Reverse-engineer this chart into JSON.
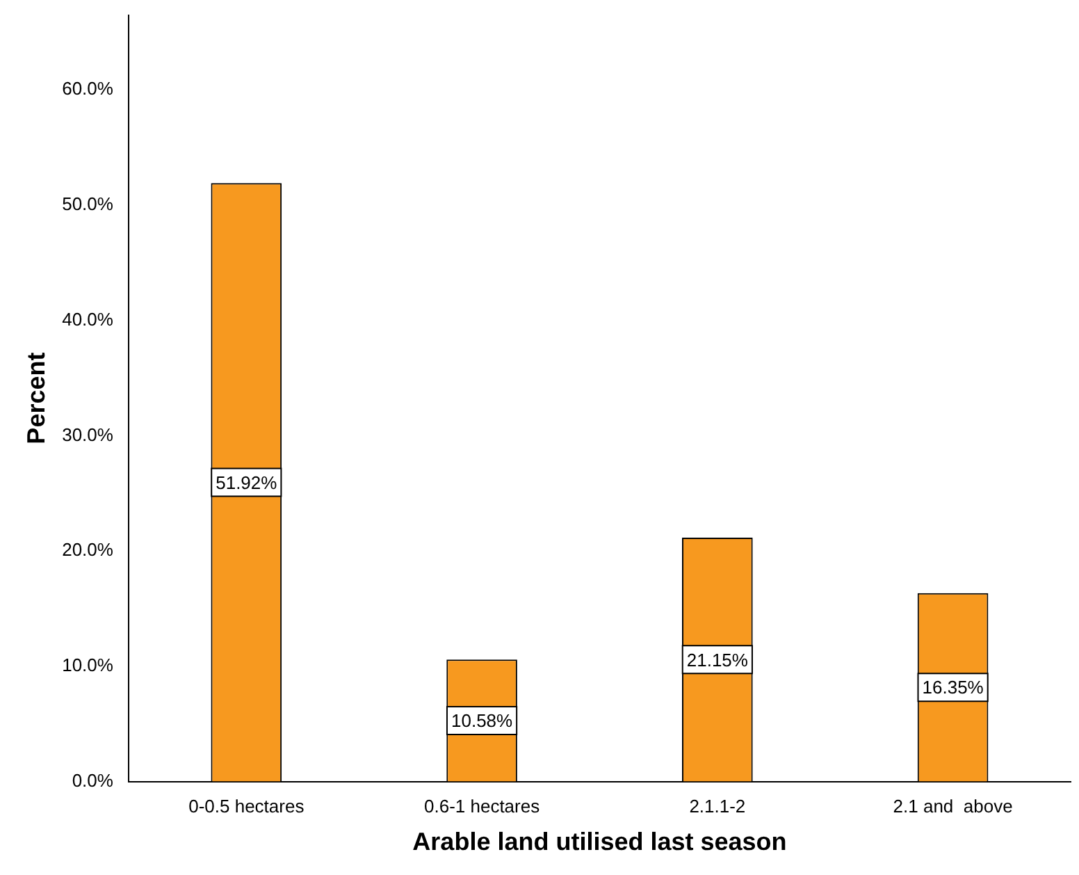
{
  "chart_data": {
    "type": "bar",
    "xlabel": "Arable land utilised last season",
    "ylabel": "Percent",
    "categories": [
      "0-0.5 hectares",
      "0.6-1 hectares",
      "2.1.1-2",
      "2.1 and  above"
    ],
    "values": [
      51.92,
      10.58,
      21.15,
      16.35
    ],
    "value_labels": [
      "51.92%",
      "10.58%",
      "21.15%",
      "16.35%"
    ],
    "color": "#f7991f",
    "ylim": [
      0,
      66.5
    ],
    "yticks": [
      {
        "value": 0,
        "label": "0.0%"
      },
      {
        "value": 10,
        "label": "10.0%"
      },
      {
        "value": 20,
        "label": "20.0%"
      },
      {
        "value": 30,
        "label": "30.0%"
      },
      {
        "value": 40,
        "label": "40.0%"
      },
      {
        "value": 50,
        "label": "50.0%"
      },
      {
        "value": 60,
        "label": "60.0%"
      }
    ],
    "grid": false,
    "legend": false
  }
}
